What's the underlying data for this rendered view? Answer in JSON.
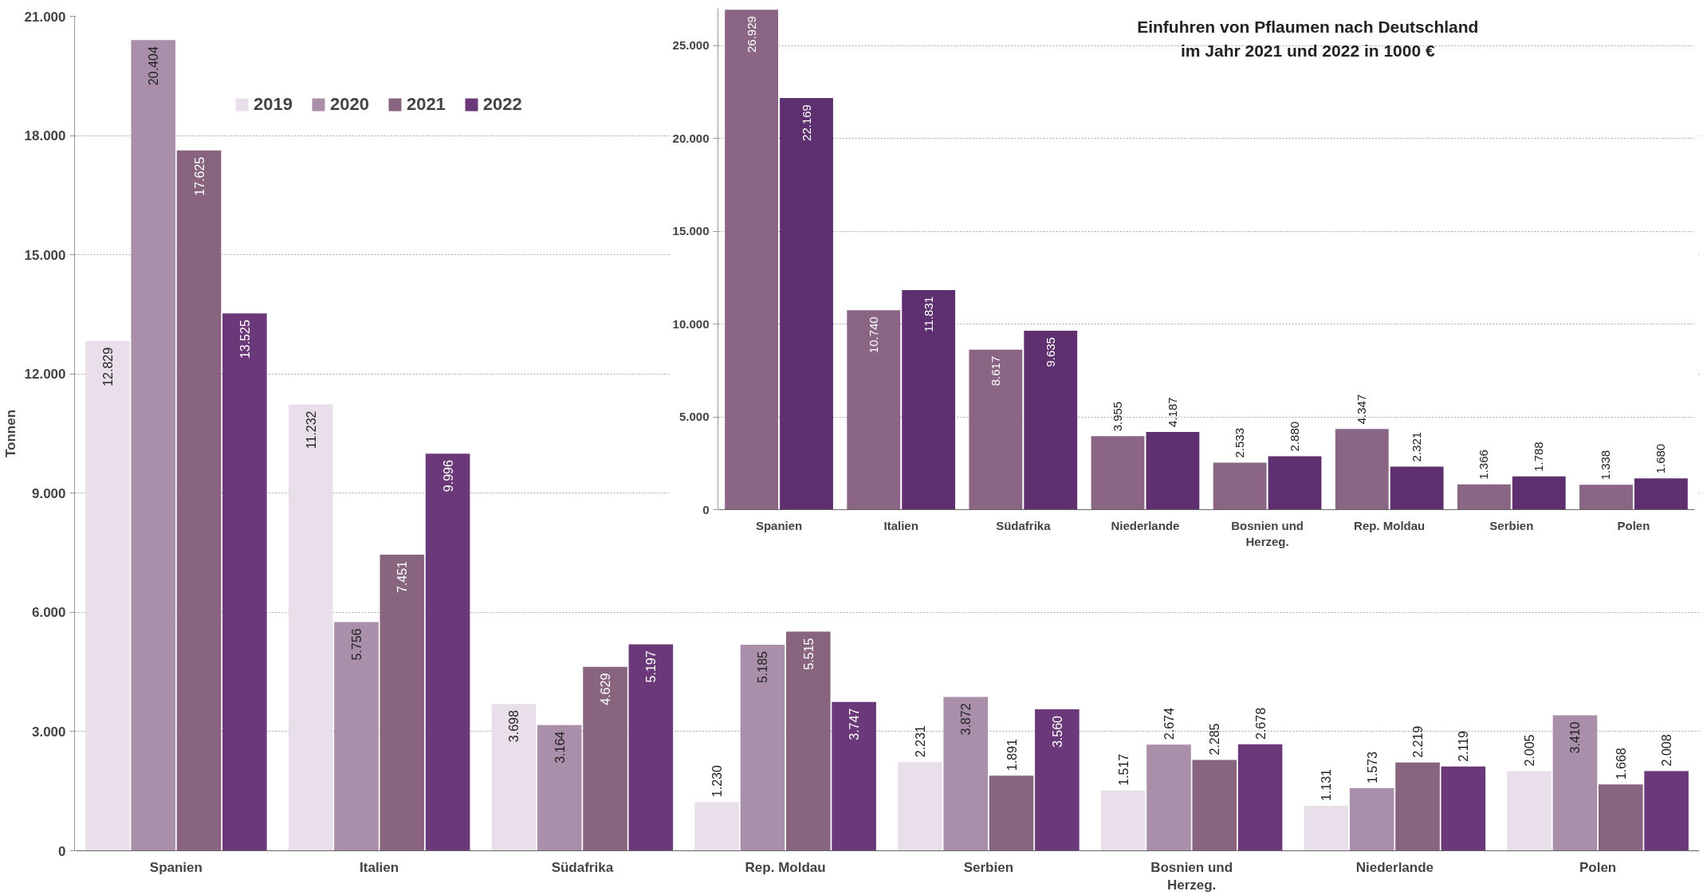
{
  "chart_data": [
    {
      "type": "bar",
      "ylabel": "Tonnen",
      "categories": [
        "Spanien",
        "Italien",
        "Südafrika",
        "Rep. Moldau",
        "Serbien",
        "Bosnien und Herzeg.",
        "Niederlande",
        "Polen"
      ],
      "series": [
        {
          "name": "2019",
          "color": "#e9dfeb",
          "values": [
            12829,
            11232,
            3698,
            1230,
            2231,
            1517,
            1131,
            2005
          ],
          "value_labels": [
            "12.829",
            "11.232",
            "3.698",
            "1.230",
            "2.231",
            "1.517",
            "1.131",
            "2.005"
          ]
        },
        {
          "name": "2020",
          "color": "#a98fa9",
          "values": [
            20404,
            5756,
            3164,
            5185,
            3872,
            2674,
            1573,
            3410
          ],
          "value_labels": [
            "20.404",
            "5.756",
            "3.164",
            "5.185",
            "3.872",
            "2.674",
            "1.573",
            "3.410"
          ]
        },
        {
          "name": "2021",
          "color": "#88647f",
          "values": [
            17625,
            7451,
            4629,
            5515,
            1891,
            2285,
            2219,
            1668
          ],
          "value_labels": [
            "17.625",
            "7.451",
            "4.629",
            "5.515",
            "1.891",
            "2.285",
            "2.219",
            "1.668"
          ]
        },
        {
          "name": "2022",
          "color": "#6b3979",
          "values": [
            13525,
            9996,
            5197,
            3747,
            3560,
            2678,
            2119,
            2008
          ],
          "value_labels": [
            "13.525",
            "9.996",
            "5.197",
            "3.747",
            "3.560",
            "2.678",
            "2.119",
            "2.008"
          ]
        }
      ],
      "ylim": [
        0,
        21000
      ],
      "yticks": [
        {
          "value": 0,
          "label": "0"
        },
        {
          "value": 3000,
          "label": "3.000"
        },
        {
          "value": 6000,
          "label": "6.000"
        },
        {
          "value": 9000,
          "label": "9.000"
        },
        {
          "value": 12000,
          "label": "12.000"
        },
        {
          "value": 15000,
          "label": "15.000"
        },
        {
          "value": 18000,
          "label": "18.000"
        },
        {
          "value": 21000,
          "label": "21.000"
        }
      ],
      "grid": "y",
      "legend": "top left"
    },
    {
      "type": "bar",
      "title": "Einfuhren von Pflaumen nach Deutschland\nim Jahr 2021 und 2022 in 1000 €",
      "categories": [
        "Spanien",
        "Italien",
        "Südafrika",
        "Niederlande",
        "Bosnien und Herzeg.",
        "Rep. Moldau",
        "Serbien",
        "Polen"
      ],
      "series": [
        {
          "color": "#8a6584",
          "values": [
            26929,
            10740,
            8617,
            3955,
            2533,
            4347,
            1366,
            1338
          ],
          "value_labels": [
            "26.929",
            "10.740",
            "8.617",
            "3.955",
            "2.533",
            "4.347",
            "1.366",
            "1.338"
          ]
        },
        {
          "color": "#5f3070",
          "values": [
            22169,
            11831,
            9635,
            4187,
            2880,
            2321,
            1788,
            1680
          ],
          "value_labels": [
            "22.169",
            "11.831",
            "9.635",
            "4.187",
            "2.880",
            "2.321",
            "1.788",
            "1.680"
          ]
        }
      ],
      "ylim": [
        0,
        27000
      ],
      "yticks": [
        {
          "value": 0,
          "label": "0"
        },
        {
          "value": 5000,
          "label": "5.000"
        },
        {
          "value": 10000,
          "label": "10.000"
        },
        {
          "value": 15000,
          "label": "15.000"
        },
        {
          "value": 20000,
          "label": "20.000"
        },
        {
          "value": 25000,
          "label": "25.000"
        }
      ],
      "grid": "y"
    }
  ]
}
